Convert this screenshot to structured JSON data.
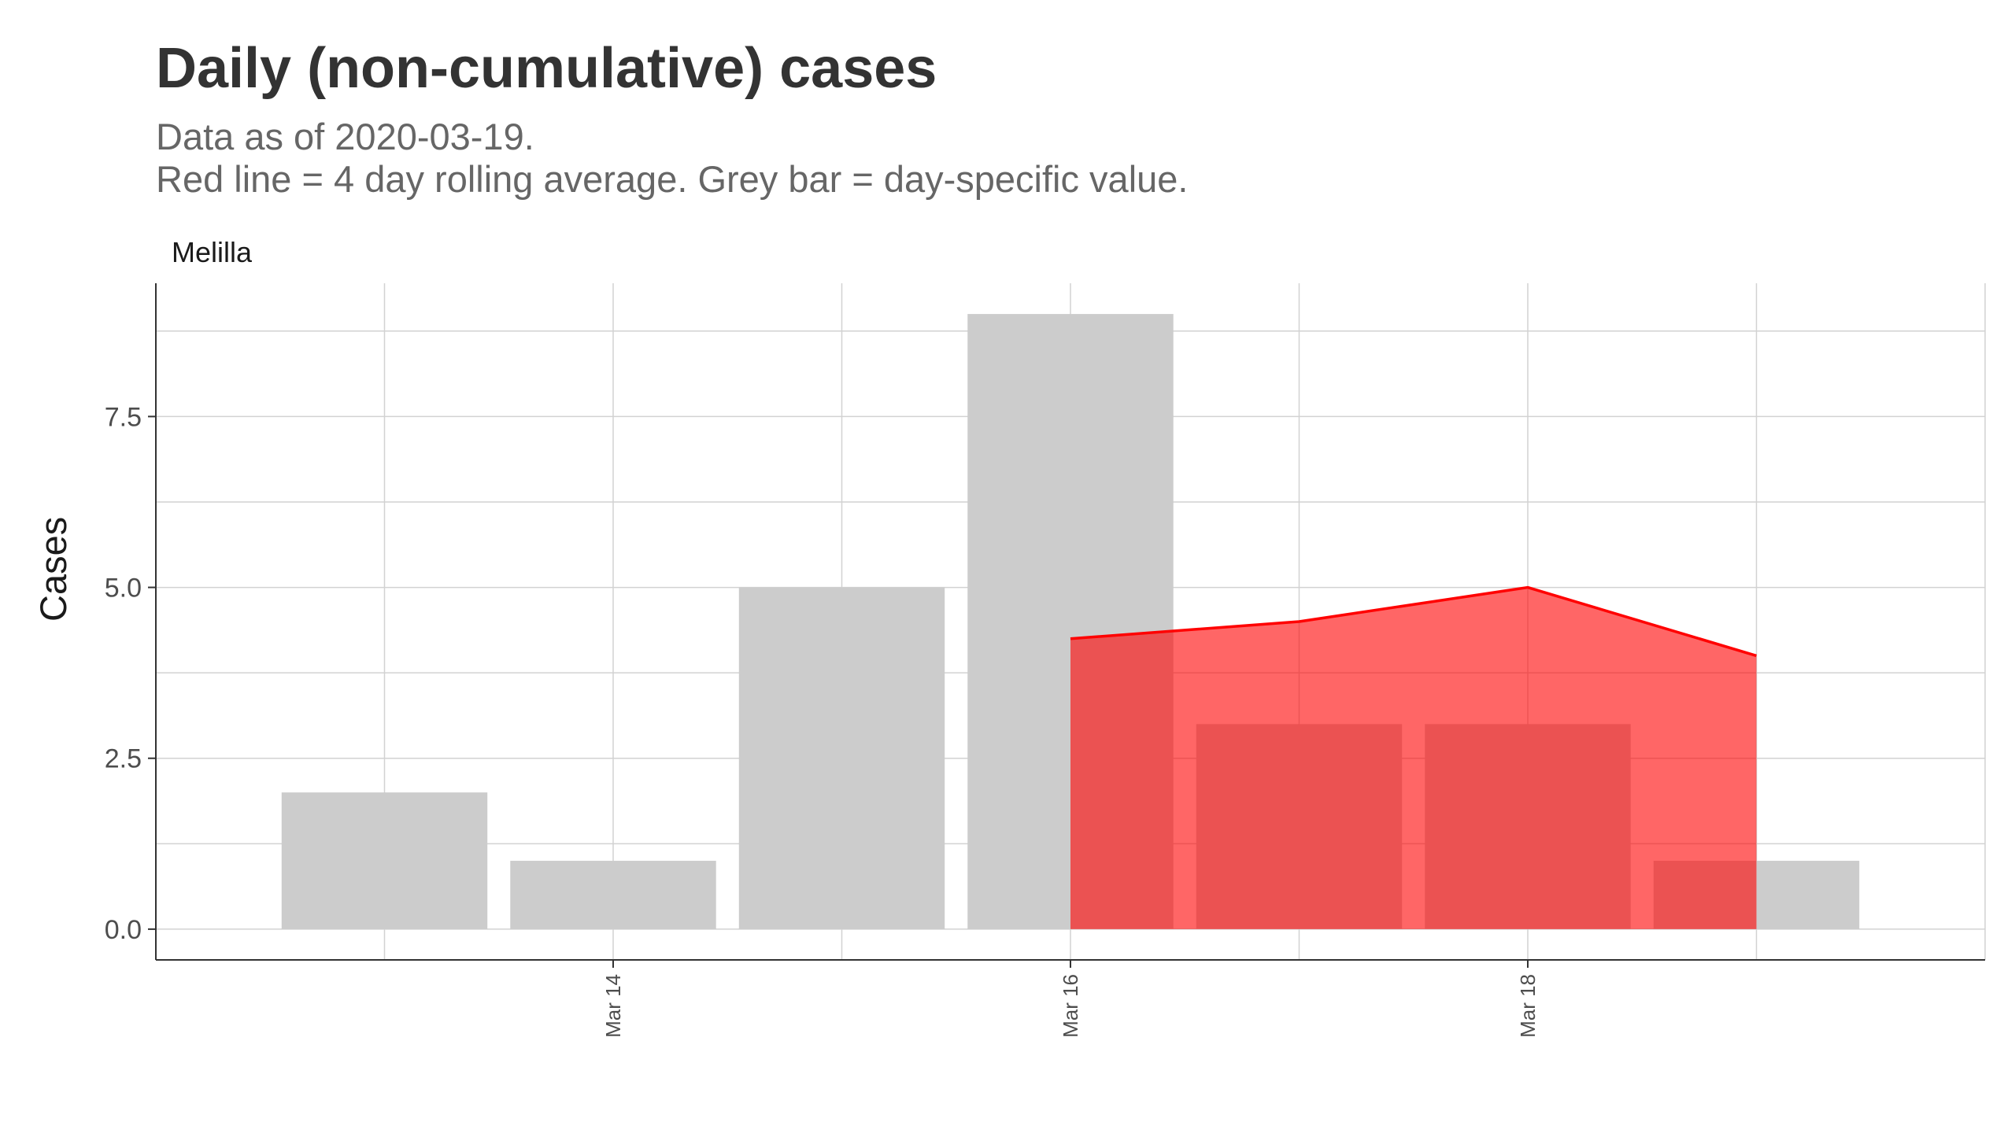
{
  "chart_data": {
    "type": "bar",
    "title": "Daily (non-cumulative) cases",
    "subtitle_lines": [
      "Data as of 2020-03-19.",
      "Red line = 4 day rolling average. Grey bar = day-specific value."
    ],
    "facet": "Melilla",
    "ylabel": "Cases",
    "xlabel": "",
    "x_dates": [
      "2020-03-13",
      "2020-03-14",
      "2020-03-15",
      "2020-03-16",
      "2020-03-17",
      "2020-03-18",
      "2020-03-19"
    ],
    "x_tick_labels": [
      {
        "date": "2020-03-14",
        "label": "Mar 14"
      },
      {
        "date": "2020-03-16",
        "label": "Mar 16"
      },
      {
        "date": "2020-03-18",
        "label": "Mar 18"
      }
    ],
    "y_ticks": [
      0,
      2.5,
      5,
      7.5
    ],
    "y_tick_labels": [
      "0.0",
      "2.5",
      "5.0",
      "7.5"
    ],
    "ylim": [
      -0.45,
      9.45
    ],
    "xlim": [
      "2020-03-12",
      "2020-03-20"
    ],
    "grid": true,
    "series": [
      {
        "kind": "bar",
        "color": "#cccccc",
        "x": [
          "2020-03-13",
          "2020-03-14",
          "2020-03-15",
          "2020-03-16",
          "2020-03-17",
          "2020-03-18",
          "2020-03-19"
        ],
        "values": [
          2,
          1,
          5,
          9,
          3,
          3,
          1
        ]
      },
      {
        "kind": "area_line",
        "line_color": "#ff0000",
        "fill_color": "#ff0000",
        "x": [
          "2020-03-16",
          "2020-03-17",
          "2020-03-18",
          "2020-03-19"
        ],
        "values": [
          4.25,
          4.5,
          5,
          4
        ]
      }
    ]
  }
}
